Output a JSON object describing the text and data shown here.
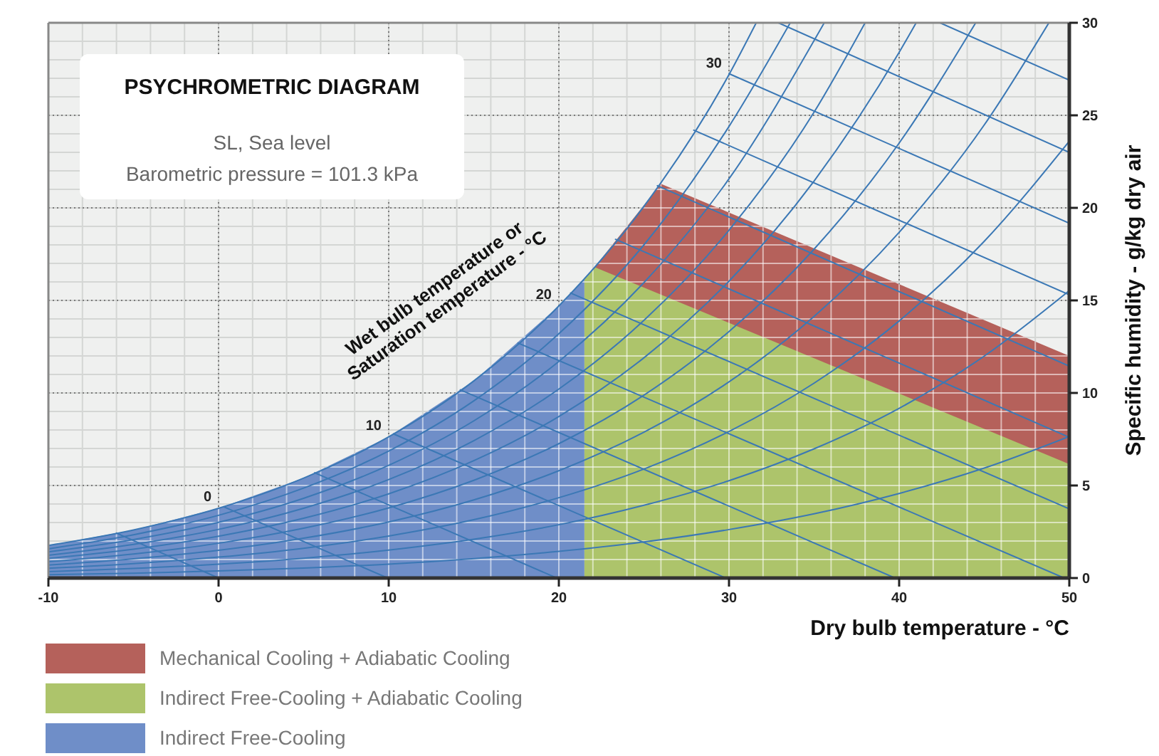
{
  "chart_data": {
    "type": "line",
    "title": "PSYCHROMETRIC DIAGRAM",
    "subtitle": "SL, Sea level",
    "annotations": [
      "Barometric pressure = 101.3 kPa",
      "Wet bulb temperature or\nSaturation temperature - °C",
      {
        "text": "0",
        "x": 0,
        "y": 3.77
      },
      {
        "text": "10",
        "x": 10,
        "y": 7.63
      },
      {
        "text": "20",
        "x": 20,
        "y": 14.7
      },
      {
        "text": "30",
        "x": 30,
        "y": 27.2
      }
    ],
    "xlabel": "Dry bulb temperature - °C",
    "ylabel": "Specific humidity - g/kg dry air",
    "xlim": [
      -10,
      50
    ],
    "ylim": [
      0,
      30
    ],
    "xticks": [
      -10,
      0,
      10,
      20,
      30,
      40,
      50
    ],
    "yticks": [
      0,
      5,
      10,
      15,
      20,
      25,
      30
    ],
    "grid": true,
    "legend": "bottom",
    "series": [
      {
        "type": "area",
        "name": "Mechanical Cooling + Adiabatic Cooling",
        "color": "#b5615b",
        "x": [
          22.1,
          26,
          50
        ],
        "values": [
          16.8,
          21.3,
          12.0
        ]
      },
      {
        "type": "area",
        "name": "Indirect Free-Cooling + Adiabatic Cooling",
        "color": "#adc46b",
        "x": [
          21.5,
          22.1,
          50
        ],
        "values": [
          16.15,
          16.8,
          6.15
        ]
      },
      {
        "type": "area",
        "name": "Indirect Free-Cooling",
        "color": "#6f8ec8",
        "x": [
          -10,
          -5,
          0,
          5,
          10,
          15,
          20,
          21.5
        ],
        "values": [
          1.76,
          2.6,
          3.77,
          5.4,
          7.63,
          10.65,
          14.7,
          16.15
        ]
      },
      {
        "type": "line",
        "color": "#3b78b5",
        "x": [
          -10,
          -5,
          0,
          5,
          10,
          15,
          20,
          25,
          30,
          31.6
        ],
        "values": [
          1.76,
          2.6,
          3.77,
          5.4,
          7.63,
          10.65,
          14.7,
          20.08,
          27.2,
          30
        ]
      },
      {
        "type": "line",
        "color": "#3b78b5",
        "x": [
          -10,
          -5,
          0,
          5,
          10,
          15,
          20,
          25,
          30,
          33.6
        ],
        "values": [
          1.58,
          2.34,
          3.39,
          4.86,
          6.86,
          9.57,
          13.2,
          18.0,
          24.4,
          30
        ]
      },
      {
        "type": "line",
        "color": "#3b78b5",
        "x": [
          -10,
          -5,
          0,
          5,
          10,
          15,
          20,
          25,
          30,
          35.6
        ],
        "values": [
          1.41,
          2.08,
          3.01,
          4.31,
          6.09,
          8.49,
          11.7,
          15.96,
          21.57,
          30
        ]
      },
      {
        "type": "line",
        "color": "#3b78b5",
        "x": [
          -10,
          -5,
          0,
          5,
          10,
          15,
          20,
          25,
          30,
          35,
          38.0
        ],
        "values": [
          1.23,
          1.82,
          2.63,
          3.77,
          5.32,
          7.42,
          10.21,
          13.92,
          18.79,
          25.17,
          30
        ]
      },
      {
        "type": "line",
        "color": "#3b78b5",
        "x": [
          -10,
          -5,
          0,
          5,
          10,
          15,
          20,
          25,
          30,
          35,
          40,
          41.0
        ],
        "values": [
          1.06,
          1.56,
          2.26,
          3.23,
          4.55,
          6.34,
          8.73,
          11.9,
          16.04,
          21.45,
          28.4,
          30
        ]
      },
      {
        "type": "line",
        "color": "#3b78b5",
        "x": [
          -10,
          -5,
          0,
          5,
          10,
          15,
          20,
          25,
          30,
          35,
          40,
          44.5
        ],
        "values": [
          0.88,
          1.3,
          1.88,
          2.69,
          3.79,
          5.28,
          7.26,
          9.88,
          13.32,
          17.77,
          23.5,
          30
        ]
      },
      {
        "type": "line",
        "color": "#3b78b5",
        "x": [
          -10,
          -5,
          0,
          5,
          10,
          15,
          20,
          25,
          30,
          35,
          40,
          45,
          48.8
        ],
        "values": [
          0.7,
          1.04,
          1.5,
          2.15,
          3.03,
          4.22,
          5.8,
          7.88,
          10.6,
          14.13,
          18.68,
          24.48,
          30
        ]
      },
      {
        "type": "line",
        "color": "#3b78b5",
        "x": [
          -10,
          -5,
          0,
          5,
          10,
          15,
          20,
          25,
          30,
          35,
          40,
          45,
          50
        ],
        "values": [
          0.53,
          0.78,
          1.13,
          1.61,
          2.27,
          3.15,
          4.34,
          5.89,
          7.92,
          10.53,
          13.89,
          18.19,
          23.6
        ]
      },
      {
        "type": "line",
        "color": "#3b78b5",
        "x": [
          -10,
          -5,
          0,
          5,
          10,
          15,
          20,
          25,
          30,
          35,
          40,
          45,
          50
        ],
        "values": [
          0.35,
          0.52,
          0.75,
          1.07,
          1.51,
          2.1,
          2.88,
          3.93,
          5.26,
          6.98,
          9.17,
          11.99,
          15.53
        ]
      },
      {
        "type": "line",
        "color": "#3b78b5",
        "x": [
          -10,
          -5,
          0,
          5,
          10,
          15,
          20,
          25,
          30,
          35,
          40,
          45,
          50
        ],
        "values": [
          0.18,
          0.26,
          0.38,
          0.54,
          0.75,
          1.05,
          1.44,
          1.95,
          2.62,
          3.47,
          4.57,
          5.94,
          7.65
        ]
      },
      {
        "type": "line",
        "color": "#3b78b5",
        "x": [
          -6.0,
          0
        ],
        "values": [
          2.43,
          0
        ]
      },
      {
        "type": "line",
        "color": "#3b78b5",
        "x": [
          0.3,
          9.94
        ],
        "values": [
          3.85,
          0
        ]
      },
      {
        "type": "line",
        "color": "#3b78b5",
        "x": [
          5.65,
          19.88
        ],
        "values": [
          5.69,
          0
        ]
      },
      {
        "type": "line",
        "color": "#3b78b5",
        "x": [
          10.28,
          29.82
        ],
        "values": [
          7.79,
          0
        ]
      },
      {
        "type": "line",
        "color": "#3b78b5",
        "x": [
          14.21,
          39.76
        ],
        "values": [
          10.17,
          0
        ]
      },
      {
        "type": "line",
        "color": "#3b78b5",
        "x": [
          17.6,
          49.7
        ],
        "values": [
          12.7,
          0
        ]
      },
      {
        "type": "line",
        "color": "#3b78b5",
        "x": [
          20.69,
          50
        ],
        "values": [
          15.4,
          3.74
        ]
      },
      {
        "type": "line",
        "color": "#3b78b5",
        "x": [
          23.33,
          50
        ],
        "values": [
          18.3,
          7.6
        ]
      },
      {
        "type": "line",
        "color": "#3b78b5",
        "x": [
          25.79,
          50
        ],
        "values": [
          21.2,
          11.45
        ]
      },
      {
        "type": "line",
        "color": "#3b78b5",
        "x": [
          27.93,
          50
        ],
        "values": [
          24.2,
          15.3
        ]
      },
      {
        "type": "line",
        "color": "#3b78b5",
        "x": [
          30.0,
          50
        ],
        "values": [
          27.25,
          19.17
        ]
      },
      {
        "type": "line",
        "color": "#3b78b5",
        "x": [
          32.9,
          50
        ],
        "values": [
          30,
          23.0
        ]
      },
      {
        "type": "line",
        "color": "#3b78b5",
        "x": [
          42.4,
          50
        ],
        "values": [
          30,
          26.9
        ]
      }
    ]
  }
}
